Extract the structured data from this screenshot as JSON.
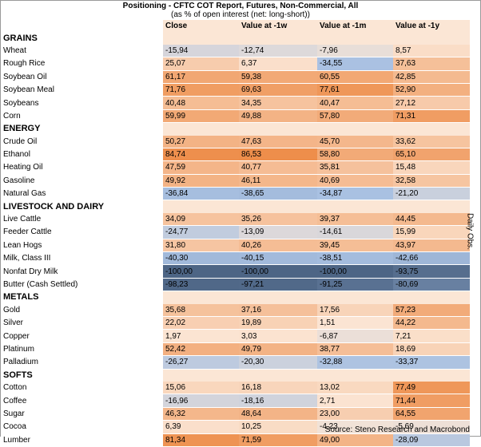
{
  "title": "Positioning - CFTC COT Report, Futures, Non-Commercial, All",
  "subtitle": "(as % of open interest (net: long-short))",
  "side_label": "Daily Obs.",
  "source": "Source: Steno Research and Macrobond",
  "chart_data": {
    "type": "table",
    "columns": [
      "Close",
      "Value at -1w",
      "Value at -1m",
      "Value at -1y"
    ],
    "groups": [
      {
        "name": "GRAINS",
        "rows": [
          {
            "label": "Wheat",
            "values": [
              "-15,94",
              "-12,74",
              "-7,96",
              "8,57"
            ],
            "num": [
              -15.94,
              -12.74,
              -7.96,
              8.57
            ]
          },
          {
            "label": "Rough Rice",
            "values": [
              "25,07",
              "6,37",
              "-34,55",
              "37,63"
            ],
            "num": [
              25.07,
              6.37,
              -34.55,
              37.63
            ]
          },
          {
            "label": "Soybean Oil",
            "values": [
              "61,17",
              "59,38",
              "60,55",
              "42,85"
            ],
            "num": [
              61.17,
              59.38,
              60.55,
              42.85
            ]
          },
          {
            "label": "Soybean Meal",
            "values": [
              "71,76",
              "69,63",
              "77,61",
              "52,90"
            ],
            "num": [
              71.76,
              69.63,
              77.61,
              52.9
            ]
          },
          {
            "label": "Soybeans",
            "values": [
              "40,48",
              "34,35",
              "40,47",
              "27,12"
            ],
            "num": [
              40.48,
              34.35,
              40.47,
              27.12
            ]
          },
          {
            "label": "Corn",
            "values": [
              "59,99",
              "49,88",
              "57,80",
              "71,31"
            ],
            "num": [
              59.99,
              49.88,
              57.8,
              71.31
            ]
          }
        ]
      },
      {
        "name": "ENERGY",
        "rows": [
          {
            "label": "Crude Oil",
            "values": [
              "50,27",
              "47,63",
              "45,70",
              "33,62"
            ],
            "num": [
              50.27,
              47.63,
              45.7,
              33.62
            ]
          },
          {
            "label": "Ethanol",
            "values": [
              "84,74",
              "86,53",
              "58,80",
              "65,10"
            ],
            "num": [
              84.74,
              86.53,
              58.8,
              65.1
            ]
          },
          {
            "label": "Heating Oil",
            "values": [
              "47,59",
              "40,77",
              "35,81",
              "15,48"
            ],
            "num": [
              47.59,
              40.77,
              35.81,
              15.48
            ]
          },
          {
            "label": "Gasoline",
            "values": [
              "49,92",
              "46,11",
              "40,69",
              "32,58"
            ],
            "num": [
              49.92,
              46.11,
              40.69,
              32.58
            ]
          },
          {
            "label": "Natural Gas",
            "values": [
              "-36,84",
              "-38,65",
              "-34,87",
              "-21,20"
            ],
            "num": [
              -36.84,
              -38.65,
              -34.87,
              -21.2
            ]
          }
        ]
      },
      {
        "name": "LIVESTOCK AND DAIRY",
        "rows": [
          {
            "label": "Live Cattle",
            "values": [
              "34,09",
              "35,26",
              "39,37",
              "44,45"
            ],
            "num": [
              34.09,
              35.26,
              39.37,
              44.45
            ]
          },
          {
            "label": "Feeder Cattle",
            "values": [
              "-24,77",
              "-13,09",
              "-14,61",
              "15,99"
            ],
            "num": [
              -24.77,
              -13.09,
              -14.61,
              15.99
            ]
          },
          {
            "label": "Lean Hogs",
            "values": [
              "31,80",
              "40,26",
              "39,45",
              "43,97"
            ],
            "num": [
              31.8,
              40.26,
              39.45,
              43.97
            ]
          },
          {
            "label": "Milk, Class III",
            "values": [
              "-40,30",
              "-40,15",
              "-38,51",
              "-42,66"
            ],
            "num": [
              -40.3,
              -40.15,
              -38.51,
              -42.66
            ]
          },
          {
            "label": "Nonfat Dry Milk",
            "values": [
              "-100,00",
              "-100,00",
              "-100,00",
              "-93,75"
            ],
            "num": [
              -100.0,
              -100.0,
              -100.0,
              -93.75
            ]
          },
          {
            "label": "Butter (Cash Settled)",
            "values": [
              "-98,23",
              "-97,21",
              "-91,25",
              "-80,69"
            ],
            "num": [
              -98.23,
              -97.21,
              -91.25,
              -80.69
            ]
          }
        ]
      },
      {
        "name": "METALS",
        "rows": [
          {
            "label": "Gold",
            "values": [
              "35,68",
              "37,16",
              "17,56",
              "57,23"
            ],
            "num": [
              35.68,
              37.16,
              17.56,
              57.23
            ]
          },
          {
            "label": "Silver",
            "values": [
              "22,02",
              "19,89",
              "1,51",
              "44,22"
            ],
            "num": [
              22.02,
              19.89,
              1.51,
              44.22
            ]
          },
          {
            "label": "Copper",
            "values": [
              "1,97",
              "3,03",
              "-6,87",
              "7,21"
            ],
            "num": [
              1.97,
              3.03,
              -6.87,
              7.21
            ]
          },
          {
            "label": "Platinum",
            "values": [
              "52,42",
              "49,79",
              "38,77",
              "18,69"
            ],
            "num": [
              52.42,
              49.79,
              38.77,
              18.69
            ]
          },
          {
            "label": "Palladium",
            "values": [
              "-26,27",
              "-20,30",
              "-32,88",
              "-33,37"
            ],
            "num": [
              -26.27,
              -20.3,
              -32.88,
              -33.37
            ]
          }
        ]
      },
      {
        "name": "SOFTS",
        "rows": [
          {
            "label": "Cotton",
            "values": [
              "15,06",
              "16,18",
              "13,02",
              "77,49"
            ],
            "num": [
              15.06,
              16.18,
              13.02,
              77.49
            ]
          },
          {
            "label": "Coffee",
            "values": [
              "-16,96",
              "-18,16",
              "2,71",
              "71,44"
            ],
            "num": [
              -16.96,
              -18.16,
              2.71,
              71.44
            ]
          },
          {
            "label": "Sugar",
            "values": [
              "46,32",
              "48,64",
              "23,00",
              "64,55"
            ],
            "num": [
              46.32,
              48.64,
              23.0,
              64.55
            ]
          },
          {
            "label": "Cocoa",
            "values": [
              "6,39",
              "10,25",
              "-4,23",
              "-5,69"
            ],
            "num": [
              6.39,
              10.25,
              -4.23,
              -5.69
            ]
          },
          {
            "label": "Lumber",
            "values": [
              "81,34",
              "71,59",
              "49,00",
              "-28,09"
            ],
            "num": [
              81.34,
              71.59,
              49.0,
              -28.09
            ]
          }
        ]
      }
    ],
    "colors": {
      "positive": "#ed8a45",
      "neutral": "#fbe6d5",
      "negative": "#4d6585",
      "mid_negative": "#a9c1e2"
    }
  }
}
